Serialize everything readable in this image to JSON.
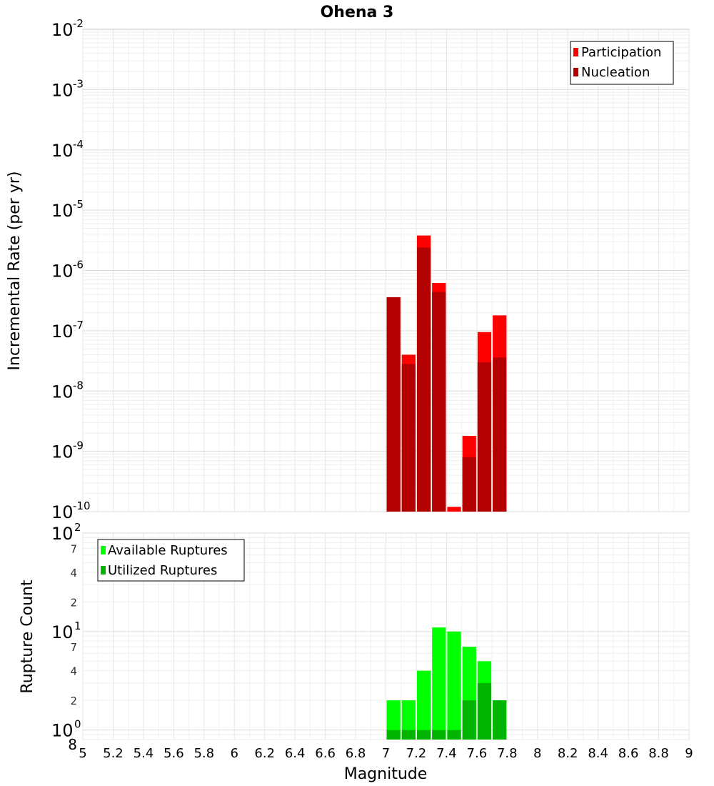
{
  "chart_data": [
    {
      "type": "bar",
      "title": "Ohena 3",
      "xlabel": "",
      "ylabel": "Incremental Rate (per yr)",
      "yscale": "log",
      "ylim": [
        1e-10,
        0.01
      ],
      "xlim": [
        5,
        9
      ],
      "grid": true,
      "legend_position": "top-right",
      "bar_width": 0.1,
      "x": [
        7.0,
        7.1,
        7.2,
        7.3,
        7.4,
        7.5,
        7.6,
        7.7
      ],
      "series": [
        {
          "name": "Participation",
          "color": "#ff0000",
          "values": [
            3.6e-07,
            4e-08,
            3.8e-06,
            6.2e-07,
            1.2e-10,
            1.8e-09,
            9.5e-08,
            1.8e-07
          ]
        },
        {
          "name": "Nucleation",
          "color": "#b30000",
          "values": [
            3.6e-07,
            2.8e-08,
            2.4e-06,
            4.4e-07,
            null,
            8e-10,
            3e-08,
            3.6e-08
          ]
        }
      ],
      "y_ticks": [
        {
          "base": "10",
          "exp": "-2",
          "value": 0.01
        },
        {
          "base": "10",
          "exp": "-3",
          "value": 0.001
        },
        {
          "base": "10",
          "exp": "-4",
          "value": 0.0001
        },
        {
          "base": "10",
          "exp": "-5",
          "value": 1e-05
        },
        {
          "base": "10",
          "exp": "-6",
          "value": 1e-06
        },
        {
          "base": "10",
          "exp": "-7",
          "value": 1e-07
        },
        {
          "base": "10",
          "exp": "-8",
          "value": 1e-08
        },
        {
          "base": "10",
          "exp": "-9",
          "value": 1e-09
        },
        {
          "base": "10",
          "exp": "-10",
          "value": 1e-10
        }
      ]
    },
    {
      "type": "bar",
      "title": "",
      "xlabel": "Magnitude",
      "ylabel": "Rupture Count",
      "yscale": "log",
      "ylim": [
        0.8,
        100
      ],
      "xlim": [
        5,
        9
      ],
      "grid": true,
      "legend_position": "top-left",
      "bar_width": 0.1,
      "x": [
        7.0,
        7.1,
        7.2,
        7.3,
        7.4,
        7.5,
        7.6,
        7.7
      ],
      "series": [
        {
          "name": "Available Ruptures",
          "color": "#00ff00",
          "values": [
            2,
            2,
            4,
            11,
            10,
            7,
            5,
            2
          ]
        },
        {
          "name": "Utilized Ruptures",
          "color": "#00b400",
          "values": [
            1,
            1,
            1,
            1,
            1,
            2,
            3,
            2
          ]
        }
      ],
      "y_ticks": [
        {
          "base": "10",
          "exp": "2",
          "value": 100,
          "major": true
        },
        {
          "base": "7",
          "exp": "",
          "value": 70,
          "major": false
        },
        {
          "base": "4",
          "exp": "",
          "value": 40,
          "major": false
        },
        {
          "base": "2",
          "exp": "",
          "value": 20,
          "major": false
        },
        {
          "base": "10",
          "exp": "1",
          "value": 10,
          "major": true
        },
        {
          "base": "7",
          "exp": "",
          "value": 7,
          "major": false
        },
        {
          "base": "4",
          "exp": "",
          "value": 4,
          "major": false
        },
        {
          "base": "2",
          "exp": "",
          "value": 2,
          "major": false
        },
        {
          "base": "10",
          "exp": "0",
          "value": 1,
          "major": true
        },
        {
          "base": "8",
          "exp": "",
          "value": 0.8,
          "major": false
        }
      ],
      "x_ticks": [
        "5",
        "5.2",
        "5.4",
        "5.6",
        "5.8",
        "6",
        "6.2",
        "6.4",
        "6.6",
        "6.8",
        "7",
        "7.2",
        "7.4",
        "7.6",
        "7.8",
        "8",
        "8.2",
        "8.4",
        "8.6",
        "8.8",
        "9"
      ],
      "x_tick_values": [
        5,
        5.2,
        5.4,
        5.6,
        5.8,
        6,
        6.2,
        6.4,
        6.6,
        6.8,
        7,
        7.2,
        7.4,
        7.6,
        7.8,
        8,
        8.2,
        8.4,
        8.6,
        8.8,
        9
      ]
    }
  ]
}
